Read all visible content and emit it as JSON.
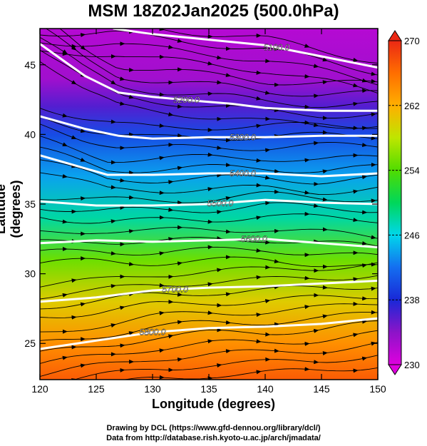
{
  "chart_data": {
    "type": "heatmap",
    "title": "MSM 18Z02Jan2025 (500.0hPa)",
    "xlabel": "Longitude (degrees)",
    "ylabel": "Latitude  (degrees)",
    "xlim": [
      120,
      150
    ],
    "ylim": [
      22.4,
      47.6
    ],
    "x_ticks": [
      "120",
      "125",
      "130",
      "135",
      "140",
      "145",
      "150"
    ],
    "y_ticks": [
      "25",
      "30",
      "35",
      "40",
      "45"
    ],
    "colorbar": {
      "min": 230,
      "max": 270,
      "tick_labels": [
        "230",
        "238",
        "246",
        "254",
        "262",
        "270"
      ],
      "colormap": "rainbow (magenta low to red high)",
      "extend": "both"
    },
    "temperature_field_K": [
      {
        "lat": 47.6,
        "value": 232
      },
      {
        "lat": 44,
        "value": 233
      },
      {
        "lat": 42,
        "value": 236
      },
      {
        "lat": 40,
        "value": 240
      },
      {
        "lat": 37,
        "value": 244
      },
      {
        "lat": 34,
        "value": 248
      },
      {
        "lat": 31,
        "value": 255
      },
      {
        "lat": 28,
        "value": 260
      },
      {
        "lat": 25,
        "value": 264
      },
      {
        "lat": 22.4,
        "value": 267
      }
    ],
    "height_contours": [
      {
        "label": "5100.0",
        "points": [
          [
            126.5,
            47.6
          ],
          [
            130,
            47.2
          ],
          [
            135,
            46.8
          ],
          [
            140,
            46.4
          ],
          [
            145,
            45.6
          ],
          [
            150,
            44.8
          ]
        ]
      },
      {
        "label": "5200.0",
        "points": [
          [
            120,
            46.5
          ],
          [
            124,
            44.2
          ],
          [
            127,
            43.0
          ],
          [
            130,
            42.7
          ],
          [
            134,
            42.4
          ],
          [
            137,
            42.2
          ],
          [
            140,
            41.9
          ],
          [
            145,
            41.7
          ],
          [
            150,
            41.7
          ]
        ]
      },
      {
        "label": "5300.0",
        "points": [
          [
            120,
            41.3
          ],
          [
            124,
            40.4
          ],
          [
            127,
            39.9
          ],
          [
            130,
            39.7
          ],
          [
            135,
            39.8
          ],
          [
            140,
            39.8
          ],
          [
            145,
            39.9
          ],
          [
            150,
            39.9
          ]
        ]
      },
      {
        "label": "5400.0",
        "points": [
          [
            120,
            38.5
          ],
          [
            123,
            37.8
          ],
          [
            126,
            37.1
          ],
          [
            130,
            37.1
          ],
          [
            135,
            37.2
          ],
          [
            140,
            37.2
          ],
          [
            145,
            37.0
          ],
          [
            150,
            37.2
          ]
        ]
      },
      {
        "label": "5500.0",
        "points": [
          [
            120,
            35.2
          ],
          [
            125,
            34.9
          ],
          [
            130,
            34.9
          ],
          [
            135,
            35.0
          ],
          [
            140,
            35.3
          ],
          [
            145,
            35.1
          ],
          [
            150,
            35.0
          ]
        ]
      },
      {
        "label": "5600.0",
        "points": [
          [
            120,
            32.2
          ],
          [
            125,
            32.4
          ],
          [
            130,
            32.3
          ],
          [
            135,
            32.4
          ],
          [
            140,
            32.5
          ],
          [
            145,
            32.2
          ],
          [
            150,
            31.9
          ]
        ]
      },
      {
        "label": "5700.0",
        "points": [
          [
            120,
            28.0
          ],
          [
            125,
            28.3
          ],
          [
            130,
            28.8
          ],
          [
            135,
            29.0
          ],
          [
            140,
            29.1
          ],
          [
            145,
            29.3
          ],
          [
            150,
            29.5
          ]
        ]
      },
      {
        "label": "5800.0",
        "points": [
          [
            120,
            24.6
          ],
          [
            125,
            25.2
          ],
          [
            130,
            25.8
          ],
          [
            135,
            26.1
          ],
          [
            140,
            26.2
          ],
          [
            145,
            26.4
          ],
          [
            150,
            26.8
          ]
        ]
      }
    ],
    "wind_field": "streamlines, westerly flow",
    "grid": true
  },
  "credits": {
    "line1": "Drawing by DCL (https://www.gfd-dennou.org/library/dcl/)",
    "line2": "Data from http://database.rish.kyoto-u.ac.jp/arch/jmadata/"
  }
}
